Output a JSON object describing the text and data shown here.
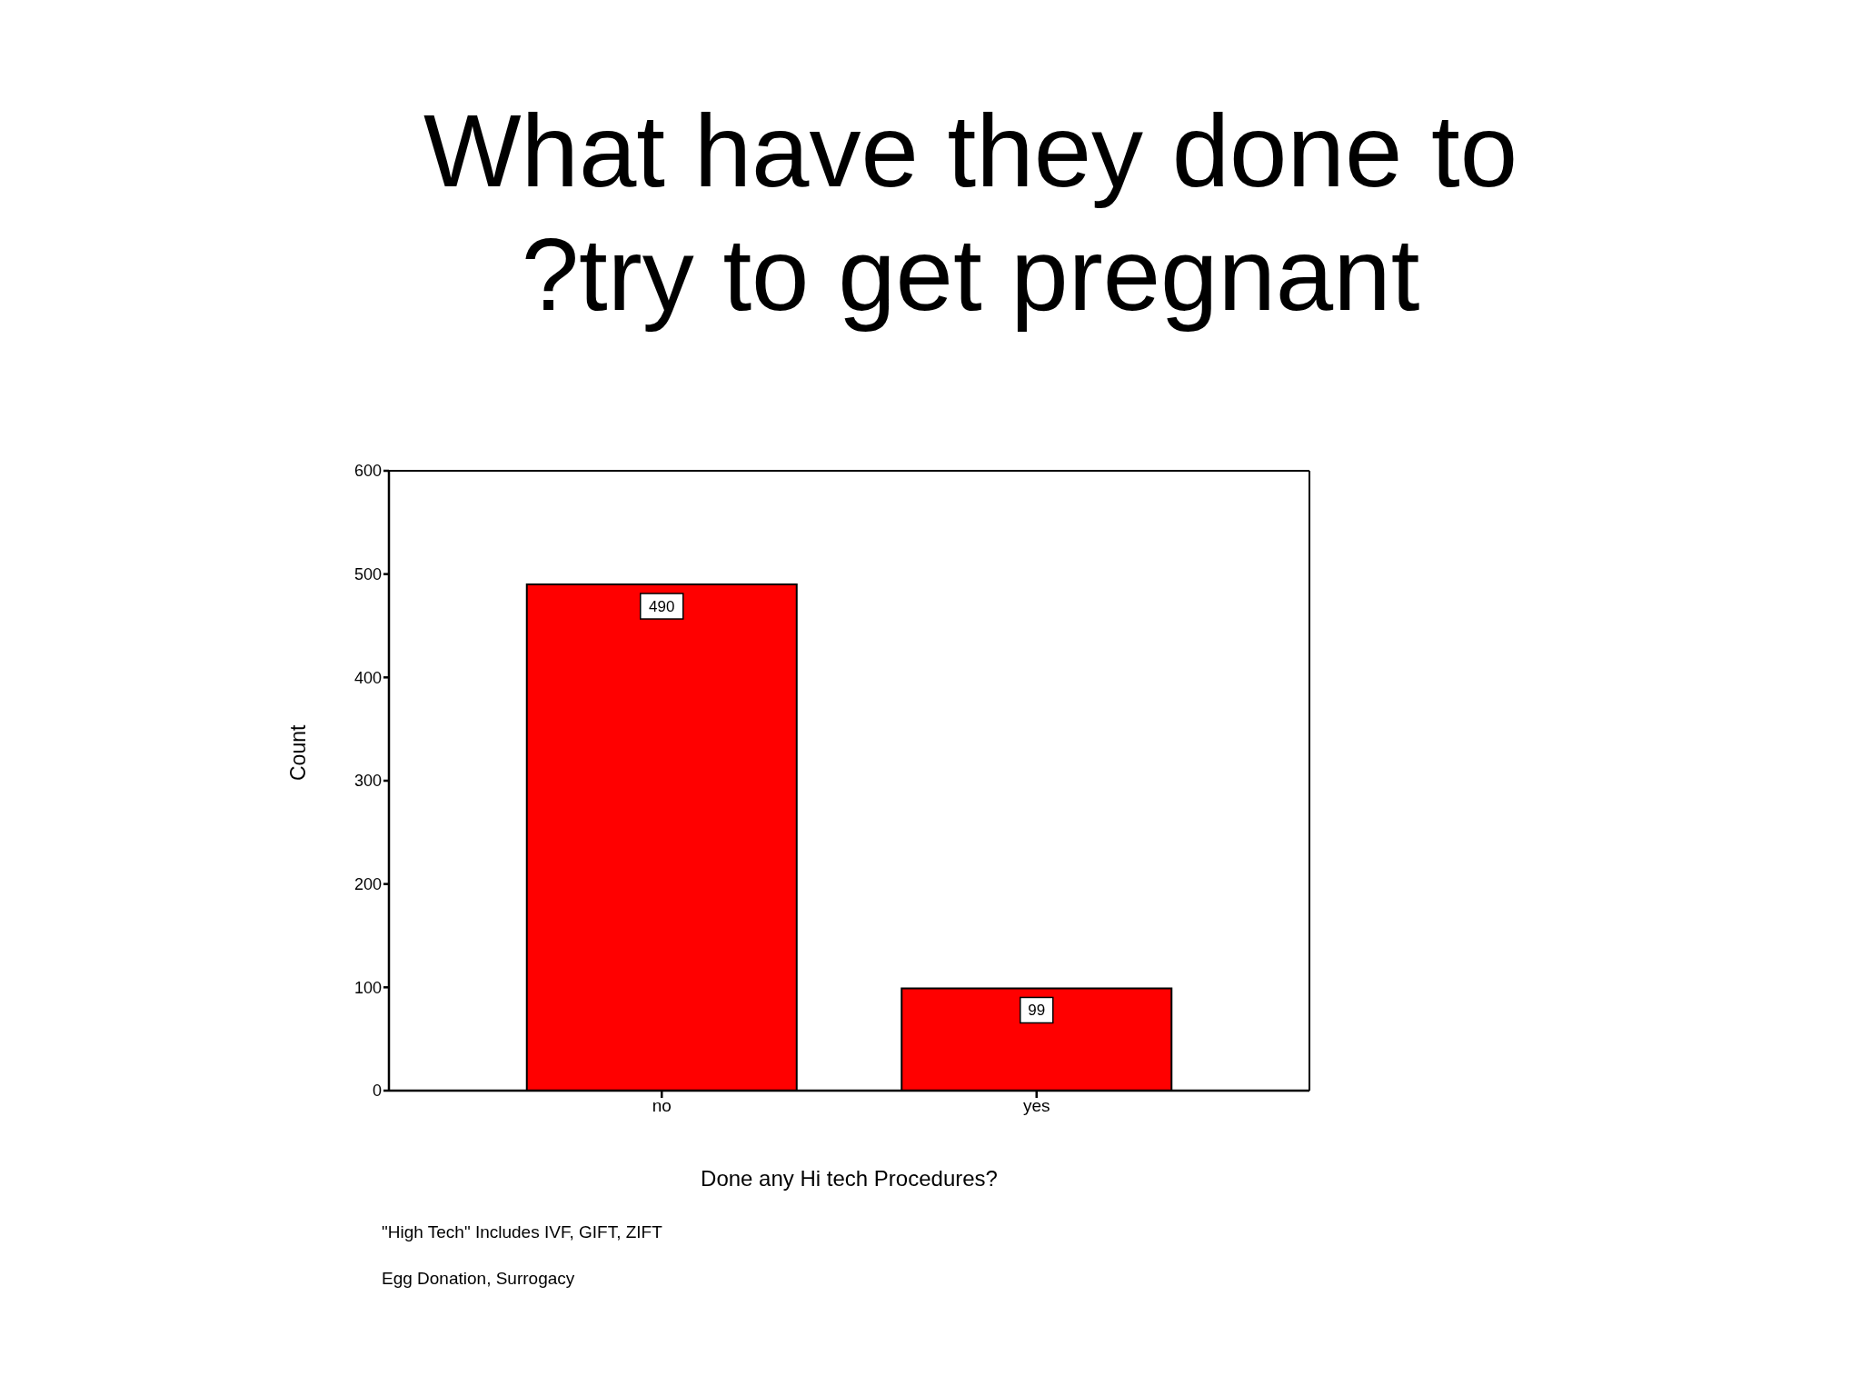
{
  "chart_data": {
    "type": "bar",
    "title": "What have they done to ?try to get pregnant",
    "xlabel": "Done any Hi tech Procedures?",
    "ylabel": "Count",
    "categories": [
      "no",
      "yes"
    ],
    "values": [
      490,
      99
    ],
    "color": "#ff0000",
    "ylim": [
      0,
      600
    ],
    "yticks": [
      0,
      100,
      200,
      300,
      400,
      500,
      600
    ],
    "data_labels": true,
    "annotations": [
      "\"High Tech\" Includes IVF, GIFT, ZIFT",
      "Egg Donation,  Surrogacy"
    ]
  }
}
